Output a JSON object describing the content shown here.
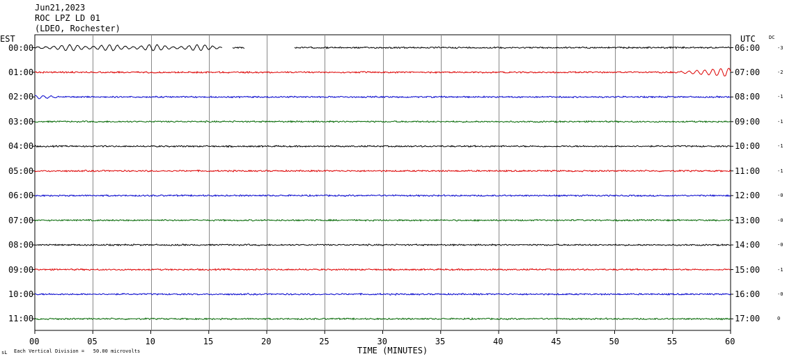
{
  "header": {
    "date": "Jun21,2023",
    "station": "ROC LPZ LD 01",
    "network": "(LDEO, Rochester)"
  },
  "left_axis_title": "EST",
  "right_axis_title": "UTC",
  "dc_title": "DC",
  "footer": {
    "scale_note": "Each Vertical Division =   50.00 microvolts",
    "corner_mark": "sL"
  },
  "chart_data": {
    "type": "line",
    "title": "",
    "xlabel": "TIME (MINUTES)",
    "ylabel": "",
    "xlim": [
      0,
      60
    ],
    "x_ticks": [
      "00",
      "05",
      "10",
      "15",
      "20",
      "25",
      "30",
      "35",
      "40",
      "45",
      "50",
      "55",
      "60"
    ],
    "grid": true,
    "trace_colors": [
      "#000000",
      "#dd0000",
      "#0000cc",
      "#006600"
    ],
    "rows": [
      {
        "est": "00:00",
        "utc": "06:00",
        "dc": "-3",
        "color": "#000000"
      },
      {
        "est": "01:00",
        "utc": "07:00",
        "dc": "-2",
        "color": "#dd0000"
      },
      {
        "est": "02:00",
        "utc": "08:00",
        "dc": "-1",
        "color": "#0000cc"
      },
      {
        "est": "03:00",
        "utc": "09:00",
        "dc": "-1",
        "color": "#006600"
      },
      {
        "est": "04:00",
        "utc": "10:00",
        "dc": "-1",
        "color": "#000000"
      },
      {
        "est": "05:00",
        "utc": "11:00",
        "dc": "-1",
        "color": "#dd0000"
      },
      {
        "est": "06:00",
        "utc": "12:00",
        "dc": "-0",
        "color": "#0000cc"
      },
      {
        "est": "07:00",
        "utc": "13:00",
        "dc": "-0",
        "color": "#006600"
      },
      {
        "est": "08:00",
        "utc": "14:00",
        "dc": "-0",
        "color": "#000000"
      },
      {
        "est": "09:00",
        "utc": "15:00",
        "dc": "-1",
        "color": "#dd0000"
      },
      {
        "est": "10:00",
        "utc": "16:00",
        "dc": "-0",
        "color": "#0000cc"
      },
      {
        "est": "11:00",
        "utc": "17:00",
        "dc": "0",
        "color": "#006600"
      }
    ],
    "gaps_minutes": [
      [
        16.2,
        17.0
      ],
      [
        18.1,
        22.4
      ]
    ],
    "bursts_minutes": [
      {
        "row": 0,
        "start": 0.0,
        "end": 16.0,
        "amplitude": "high"
      },
      {
        "row": 1,
        "start": 55.5,
        "end": 60.0,
        "amplitude": "high"
      },
      {
        "row": 2,
        "start": 0.0,
        "end": 2.0,
        "amplitude": "medium"
      }
    ]
  }
}
